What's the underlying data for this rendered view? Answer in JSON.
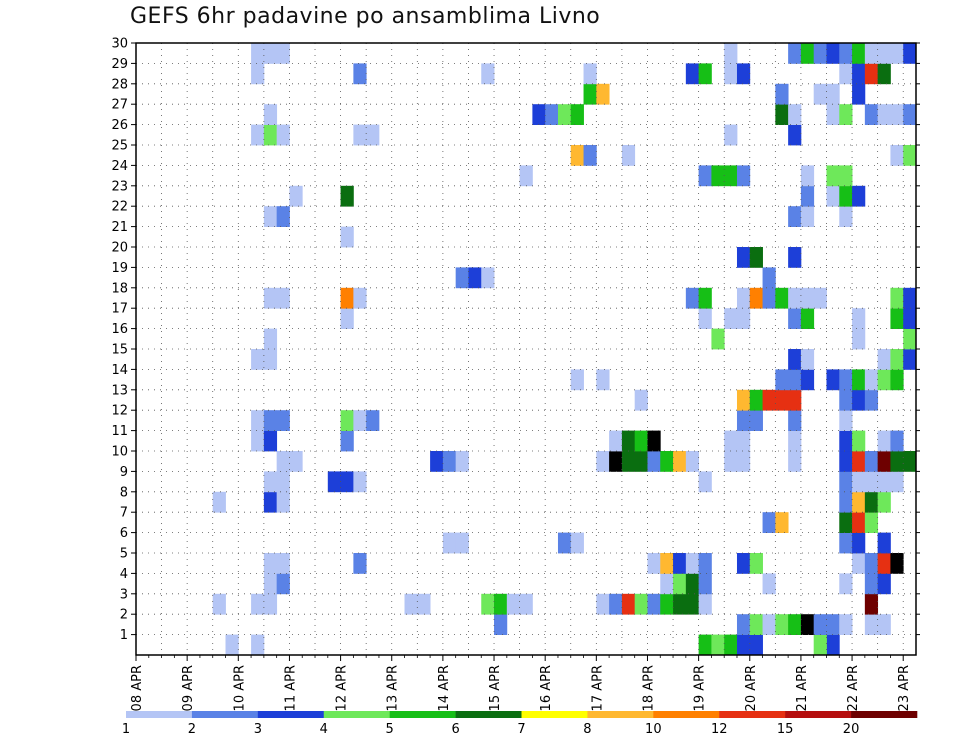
{
  "title": "GEFS 6hr padavine po ansamblima Livno",
  "chart_data": {
    "type": "heatmap",
    "title": "GEFS 6hr padavine po ansamblima Livno",
    "xlabel": "",
    "ylabel": "",
    "x_ticks": [
      "08 APR",
      "09 APR",
      "10 APR",
      "11 APR",
      "12 APR",
      "13 APR",
      "14 APR",
      "15 APR",
      "16 APR",
      "17 APR",
      "18 APR",
      "19 APR",
      "20 APR",
      "21 APR",
      "22 APR",
      "23 APR"
    ],
    "y_ticks": [
      "1",
      "2",
      "3",
      "4",
      "5",
      "6",
      "7",
      "8",
      "9",
      "10",
      "11",
      "12",
      "13",
      "14",
      "15",
      "16",
      "17",
      "18",
      "19",
      "20",
      "21",
      "22",
      "23",
      "24",
      "25",
      "26",
      "27",
      "28",
      "29",
      "30"
    ],
    "grid": true,
    "color_scale": {
      "labels": [
        "1",
        "2",
        "3",
        "4",
        "5",
        "6",
        "7",
        "8",
        "10",
        "12",
        "15",
        "20"
      ],
      "colors": [
        "#b4c5f5",
        "#5a82e6",
        "#1d3fd8",
        "#6ee85a",
        "#16bf16",
        "#0a6e10",
        "#ffff00",
        "#ffb830",
        "#ff8000",
        "#e63012",
        "#b50e0e",
        "#6e0000"
      ]
    },
    "note": "cells: [day_offset_from_08_APR_00Z, ensemble_member, precip_level]",
    "cells": [
      [
        1.75,
        0,
        1
      ],
      [
        2.25,
        0,
        1
      ],
      [
        13.5,
        0,
        3
      ],
      [
        11.0,
        0,
        5
      ],
      [
        11.25,
        0,
        4
      ],
      [
        11.5,
        0,
        5
      ],
      [
        11.75,
        0,
        3
      ],
      [
        12.0,
        0,
        3
      ],
      [
        13.25,
        0,
        4
      ],
      [
        7.0,
        1,
        2
      ],
      [
        11.75,
        1,
        2
      ],
      [
        12.0,
        1,
        4
      ],
      [
        12.25,
        1,
        1
      ],
      [
        12.5,
        1,
        4
      ],
      [
        12.75,
        1,
        5
      ],
      [
        13.0,
        1,
        15
      ],
      [
        13.25,
        1,
        2
      ],
      [
        13.5,
        1,
        2
      ],
      [
        13.75,
        1,
        1
      ],
      [
        14.25,
        1,
        1
      ],
      [
        14.5,
        1,
        1
      ],
      [
        1.5,
        2,
        1
      ],
      [
        2.25,
        2,
        1
      ],
      [
        2.5,
        2,
        1
      ],
      [
        5.25,
        2,
        1
      ],
      [
        5.5,
        2,
        1
      ],
      [
        6.75,
        2,
        4
      ],
      [
        7.0,
        2,
        5
      ],
      [
        7.25,
        2,
        1
      ],
      [
        7.5,
        2,
        1
      ],
      [
        9.0,
        2,
        1
      ],
      [
        9.25,
        2,
        2
      ],
      [
        9.5,
        2,
        10
      ],
      [
        9.75,
        2,
        4
      ],
      [
        10.0,
        2,
        2
      ],
      [
        10.25,
        2,
        5
      ],
      [
        10.5,
        2,
        6
      ],
      [
        10.75,
        2,
        6
      ],
      [
        11.0,
        2,
        1
      ],
      [
        14.25,
        2,
        12
      ],
      [
        2.5,
        3,
        1
      ],
      [
        2.75,
        3,
        2
      ],
      [
        10.25,
        3,
        1
      ],
      [
        10.5,
        3,
        4
      ],
      [
        10.75,
        3,
        6
      ],
      [
        11.0,
        3,
        2
      ],
      [
        12.25,
        3,
        1
      ],
      [
        13.75,
        3,
        1
      ],
      [
        14.25,
        3,
        2
      ],
      [
        14.5,
        3,
        3
      ],
      [
        2.5,
        4,
        1
      ],
      [
        2.75,
        4,
        1
      ],
      [
        4.25,
        4,
        2
      ],
      [
        10.0,
        4,
        1
      ],
      [
        10.25,
        4,
        8
      ],
      [
        10.5,
        4,
        3
      ],
      [
        10.75,
        4,
        1
      ],
      [
        11.0,
        4,
        2
      ],
      [
        11.75,
        4,
        3
      ],
      [
        12.0,
        4,
        4
      ],
      [
        14.0,
        4,
        1
      ],
      [
        14.25,
        4,
        2
      ],
      [
        14.5,
        4,
        10
      ],
      [
        14.75,
        4,
        20
      ],
      [
        6.0,
        5,
        1
      ],
      [
        6.25,
        5,
        1
      ],
      [
        8.25,
        5,
        2
      ],
      [
        8.5,
        5,
        1
      ],
      [
        13.75,
        5,
        2
      ],
      [
        14.0,
        5,
        3
      ],
      [
        14.5,
        5,
        3
      ],
      [
        12.25,
        6,
        2
      ],
      [
        12.5,
        6,
        8
      ],
      [
        13.75,
        6,
        6
      ],
      [
        14.0,
        6,
        10
      ],
      [
        14.25,
        6,
        4
      ],
      [
        1.5,
        7,
        1
      ],
      [
        2.5,
        7,
        3
      ],
      [
        2.75,
        7,
        1
      ],
      [
        13.75,
        7,
        2
      ],
      [
        14.0,
        7,
        8
      ],
      [
        14.25,
        7,
        6
      ],
      [
        14.5,
        7,
        4
      ],
      [
        2.5,
        8,
        1
      ],
      [
        2.75,
        8,
        1
      ],
      [
        3.75,
        8,
        3
      ],
      [
        4.0,
        8,
        3
      ],
      [
        4.25,
        8,
        1
      ],
      [
        11.0,
        8,
        1
      ],
      [
        13.75,
        8,
        2
      ],
      [
        14.0,
        8,
        1
      ],
      [
        14.25,
        8,
        1
      ],
      [
        14.5,
        8,
        1
      ],
      [
        14.75,
        8,
        1
      ],
      [
        2.75,
        9,
        1
      ],
      [
        3.0,
        9,
        1
      ],
      [
        5.75,
        9,
        3
      ],
      [
        6.0,
        9,
        2
      ],
      [
        6.25,
        9,
        1
      ],
      [
        9.0,
        9,
        1
      ],
      [
        9.25,
        9,
        15
      ],
      [
        9.5,
        9,
        6
      ],
      [
        9.75,
        9,
        6
      ],
      [
        10.0,
        9,
        2
      ],
      [
        10.25,
        9,
        5
      ],
      [
        10.5,
        9,
        8
      ],
      [
        10.75,
        9,
        1
      ],
      [
        11.5,
        9,
        1
      ],
      [
        11.75,
        9,
        1
      ],
      [
        12.75,
        9,
        1
      ],
      [
        13.75,
        9,
        3
      ],
      [
        14.0,
        9,
        10
      ],
      [
        14.25,
        9,
        2
      ],
      [
        14.5,
        9,
        12
      ],
      [
        14.75,
        9,
        6
      ],
      [
        15.0,
        9,
        6
      ],
      [
        15.25,
        9,
        4
      ],
      [
        2.25,
        10,
        1
      ],
      [
        2.5,
        10,
        3
      ],
      [
        4.0,
        10,
        2
      ],
      [
        9.25,
        10,
        1
      ],
      [
        9.5,
        10,
        6
      ],
      [
        9.75,
        10,
        5
      ],
      [
        10.0,
        10,
        20
      ],
      [
        11.5,
        10,
        1
      ],
      [
        11.75,
        10,
        1
      ],
      [
        12.75,
        10,
        1
      ],
      [
        13.75,
        10,
        3
      ],
      [
        14.0,
        10,
        4
      ],
      [
        14.5,
        10,
        1
      ],
      [
        14.75,
        10,
        2
      ],
      [
        2.25,
        11,
        1
      ],
      [
        2.5,
        11,
        2
      ],
      [
        2.75,
        11,
        2
      ],
      [
        4.0,
        11,
        4
      ],
      [
        4.25,
        11,
        1
      ],
      [
        4.5,
        11,
        2
      ],
      [
        11.75,
        11,
        2
      ],
      [
        12.0,
        11,
        2
      ],
      [
        12.75,
        11,
        2
      ],
      [
        13.75,
        11,
        1
      ],
      [
        9.75,
        12,
        1
      ],
      [
        11.75,
        12,
        8
      ],
      [
        12.0,
        12,
        5
      ],
      [
        12.25,
        12,
        10
      ],
      [
        12.5,
        12,
        10
      ],
      [
        12.75,
        12,
        10
      ],
      [
        13.75,
        12,
        2
      ],
      [
        14.0,
        12,
        3
      ],
      [
        14.25,
        12,
        2
      ],
      [
        8.5,
        13,
        1
      ],
      [
        9.0,
        13,
        1
      ],
      [
        12.5,
        13,
        2
      ],
      [
        12.75,
        13,
        2
      ],
      [
        13.0,
        13,
        3
      ],
      [
        13.5,
        13,
        3
      ],
      [
        13.75,
        13,
        2
      ],
      [
        14.0,
        13,
        5
      ],
      [
        14.25,
        13,
        1
      ],
      [
        14.5,
        13,
        4
      ],
      [
        14.75,
        13,
        5
      ],
      [
        2.25,
        14,
        1
      ],
      [
        2.5,
        14,
        1
      ],
      [
        12.75,
        14,
        3
      ],
      [
        13.0,
        14,
        1
      ],
      [
        14.5,
        14,
        1
      ],
      [
        14.75,
        14,
        4
      ],
      [
        15.0,
        14,
        3
      ],
      [
        15.25,
        14,
        2
      ],
      [
        2.5,
        15,
        1
      ],
      [
        11.25,
        15,
        4
      ],
      [
        14.0,
        15,
        1
      ],
      [
        15.0,
        15,
        4
      ],
      [
        4.0,
        16,
        1
      ],
      [
        11.0,
        16,
        1
      ],
      [
        11.5,
        16,
        1
      ],
      [
        11.75,
        16,
        1
      ],
      [
        12.75,
        16,
        2
      ],
      [
        13.0,
        16,
        5
      ],
      [
        14.0,
        16,
        1
      ],
      [
        14.75,
        16,
        5
      ],
      [
        15.0,
        16,
        3
      ],
      [
        2.5,
        17,
        1
      ],
      [
        2.75,
        17,
        1
      ],
      [
        4.0,
        17,
        9
      ],
      [
        4.25,
        17,
        1
      ],
      [
        10.75,
        17,
        2
      ],
      [
        11.0,
        17,
        5
      ],
      [
        11.75,
        17,
        1
      ],
      [
        12.0,
        17,
        9
      ],
      [
        12.25,
        17,
        2
      ],
      [
        12.5,
        17,
        5
      ],
      [
        12.75,
        17,
        1
      ],
      [
        13.0,
        17,
        1
      ],
      [
        13.25,
        17,
        1
      ],
      [
        14.75,
        17,
        4
      ],
      [
        15.0,
        17,
        3
      ],
      [
        6.25,
        18,
        2
      ],
      [
        6.5,
        18,
        3
      ],
      [
        6.75,
        18,
        1
      ],
      [
        12.25,
        18,
        2
      ],
      [
        11.75,
        19,
        3
      ],
      [
        12.0,
        19,
        6
      ],
      [
        12.75,
        19,
        3
      ],
      [
        4.0,
        20,
        1
      ],
      [
        2.5,
        21,
        1
      ],
      [
        2.75,
        21,
        2
      ],
      [
        12.75,
        21,
        2
      ],
      [
        13.0,
        21,
        1
      ],
      [
        13.75,
        21,
        1
      ],
      [
        3.0,
        22,
        1
      ],
      [
        4.0,
        22,
        6
      ],
      [
        13.0,
        22,
        2
      ],
      [
        13.5,
        22,
        1
      ],
      [
        13.75,
        22,
        5
      ],
      [
        14.0,
        22,
        3
      ],
      [
        7.5,
        23,
        1
      ],
      [
        11.0,
        23,
        2
      ],
      [
        11.25,
        23,
        5
      ],
      [
        11.5,
        23,
        5
      ],
      [
        11.75,
        23,
        2
      ],
      [
        13.0,
        23,
        1
      ],
      [
        13.5,
        23,
        4
      ],
      [
        13.75,
        23,
        4
      ],
      [
        8.5,
        24,
        8
      ],
      [
        8.75,
        24,
        2
      ],
      [
        9.5,
        24,
        1
      ],
      [
        14.75,
        24,
        1
      ],
      [
        15.0,
        24,
        4
      ],
      [
        15.25,
        24,
        9
      ],
      [
        2.25,
        25,
        1
      ],
      [
        2.5,
        25,
        4
      ],
      [
        2.75,
        25,
        1
      ],
      [
        4.25,
        25,
        1
      ],
      [
        4.5,
        25,
        1
      ],
      [
        11.5,
        25,
        1
      ],
      [
        12.75,
        25,
        3
      ],
      [
        2.5,
        26,
        1
      ],
      [
        7.75,
        26,
        3
      ],
      [
        8.0,
        26,
        2
      ],
      [
        8.25,
        26,
        4
      ],
      [
        8.5,
        26,
        5
      ],
      [
        12.5,
        26,
        6
      ],
      [
        12.75,
        26,
        1
      ],
      [
        13.5,
        26,
        1
      ],
      [
        13.75,
        26,
        4
      ],
      [
        14.25,
        26,
        2
      ],
      [
        14.5,
        26,
        1
      ],
      [
        14.75,
        26,
        1
      ],
      [
        15.0,
        26,
        2
      ],
      [
        8.75,
        27,
        5
      ],
      [
        9.0,
        27,
        8
      ],
      [
        12.5,
        27,
        2
      ],
      [
        13.25,
        27,
        1
      ],
      [
        13.5,
        27,
        1
      ],
      [
        14.0,
        27,
        3
      ],
      [
        2.25,
        28,
        1
      ],
      [
        4.25,
        28,
        2
      ],
      [
        6.75,
        28,
        1
      ],
      [
        8.75,
        28,
        1
      ],
      [
        10.75,
        28,
        3
      ],
      [
        11.0,
        28,
        5
      ],
      [
        11.5,
        28,
        1
      ],
      [
        11.75,
        28,
        3
      ],
      [
        13.75,
        28,
        1
      ],
      [
        14.0,
        28,
        3
      ],
      [
        14.25,
        28,
        10
      ],
      [
        14.5,
        28,
        6
      ],
      [
        2.25,
        29,
        1
      ],
      [
        2.5,
        29,
        1
      ],
      [
        2.75,
        29,
        1
      ],
      [
        11.5,
        29,
        1
      ],
      [
        12.75,
        29,
        2
      ],
      [
        13.0,
        29,
        5
      ],
      [
        13.25,
        29,
        2
      ],
      [
        13.5,
        29,
        3
      ],
      [
        13.75,
        29,
        2
      ],
      [
        14.0,
        29,
        5
      ],
      [
        14.25,
        29,
        1
      ],
      [
        14.5,
        29,
        1
      ],
      [
        14.75,
        29,
        1
      ],
      [
        15.0,
        29,
        3
      ]
    ]
  }
}
